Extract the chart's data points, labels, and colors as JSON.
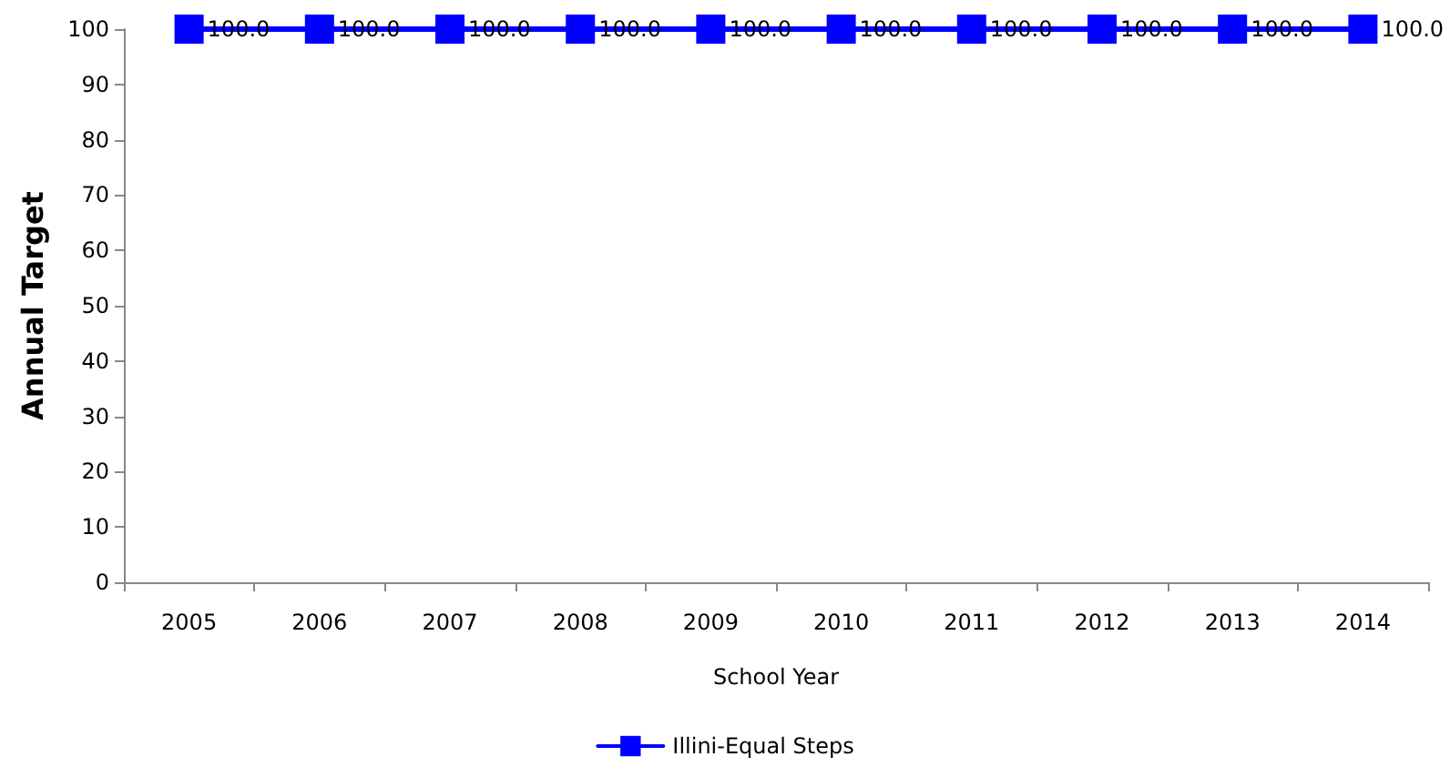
{
  "chart_data": {
    "type": "line",
    "xlabel": "School Year",
    "ylabel": "Annual Target",
    "categories": [
      "2005",
      "2006",
      "2007",
      "2008",
      "2009",
      "2010",
      "2011",
      "2012",
      "2013",
      "2014"
    ],
    "series": [
      {
        "name": "Illini-Equal Steps",
        "color": "#0000ff",
        "values": [
          100,
          100,
          100,
          100,
          100,
          100,
          100,
          100,
          100,
          100
        ],
        "value_labels": [
          "100.0",
          "100.0",
          "100.0",
          "100.0",
          "100.0",
          "100.0",
          "100.0",
          "100.0",
          "100.0",
          "100.0"
        ]
      }
    ],
    "ylim": [
      0,
      100
    ],
    "yticks": [
      0,
      10,
      20,
      30,
      40,
      50,
      60,
      70,
      80,
      90,
      100
    ],
    "grid": false,
    "legend": "bottom",
    "marker": "square",
    "line_style": "solid"
  }
}
